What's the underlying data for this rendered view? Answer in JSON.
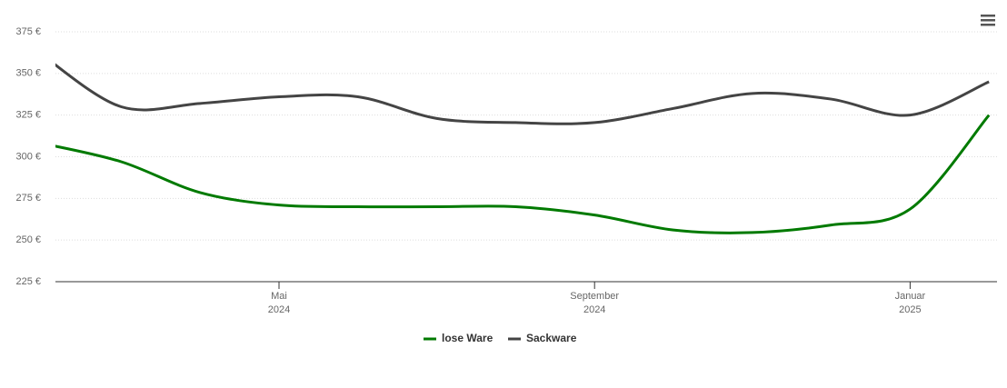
{
  "chart_data": {
    "type": "line",
    "x": [
      "2024-02",
      "2024-03",
      "2024-04",
      "2024-05",
      "2024-06",
      "2024-07",
      "2024-08",
      "2024-09",
      "2024-10",
      "2024-11",
      "2024-12",
      "2025-01",
      "2025-02"
    ],
    "series": [
      {
        "name": "lose Ware",
        "color": "#007a00",
        "values": [
          308,
          297,
          278.5,
          271,
          270,
          270,
          270,
          265,
          256,
          254.5,
          259,
          268.6,
          325
        ]
      },
      {
        "name": "Sackware",
        "color": "#444444",
        "values": [
          361,
          330,
          332,
          336,
          336,
          323,
          320.5,
          320.5,
          329,
          338,
          334.6,
          325,
          345
        ]
      }
    ],
    "ylim": [
      225,
      375
    ],
    "yticks": [
      {
        "value": 225,
        "label": "225 €"
      },
      {
        "value": 250,
        "label": "250 €"
      },
      {
        "value": 275,
        "label": "275 €"
      },
      {
        "value": 300,
        "label": "300 €"
      },
      {
        "value": 325,
        "label": "325 €"
      },
      {
        "value": 350,
        "label": "350 €"
      },
      {
        "value": 375,
        "label": "375 €"
      }
    ],
    "xticks": [
      {
        "value": "2024-05",
        "label": "Mai",
        "sublabel": "2024"
      },
      {
        "value": "2024-09",
        "label": "September",
        "sublabel": "2024"
      },
      {
        "value": "2025-01",
        "label": "Januar",
        "sublabel": "2025"
      }
    ],
    "grid": true,
    "legend": "bottom"
  }
}
